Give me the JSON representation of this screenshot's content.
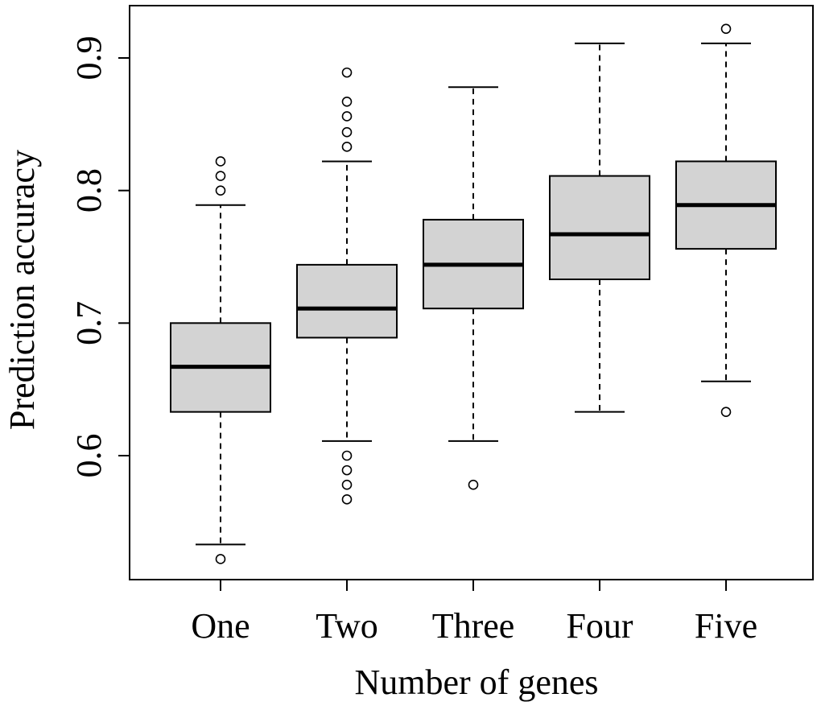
{
  "chart_data": {
    "type": "boxplot",
    "title": "",
    "xlabel": "Number of genes",
    "ylabel": "Prediction accuracy",
    "ylim": [
      0.502,
      0.94
    ],
    "yticks": [
      0.6,
      0.7,
      0.8,
      0.9
    ],
    "ytick_labels": [
      "0.6",
      "0.7",
      "0.8",
      "0.9"
    ],
    "grid": false,
    "colors": {
      "box_fill": "#d3d3d3",
      "stroke": "#000000",
      "background": "#ffffff"
    },
    "categories": [
      "One",
      "Two",
      "Three",
      "Four",
      "Five"
    ],
    "boxes": [
      {
        "label": "One",
        "whisker_low": 0.533,
        "q1": 0.633,
        "median": 0.667,
        "q3": 0.7,
        "whisker_high": 0.789,
        "outliers": [
          0.522,
          0.8,
          0.811,
          0.822
        ]
      },
      {
        "label": "Two",
        "whisker_low": 0.611,
        "q1": 0.689,
        "median": 0.711,
        "q3": 0.744,
        "whisker_high": 0.822,
        "outliers": [
          0.567,
          0.578,
          0.589,
          0.6,
          0.833,
          0.844,
          0.856,
          0.867,
          0.889
        ]
      },
      {
        "label": "Three",
        "whisker_low": 0.611,
        "q1": 0.711,
        "median": 0.744,
        "q3": 0.778,
        "whisker_high": 0.878,
        "outliers": [
          0.578
        ]
      },
      {
        "label": "Four",
        "whisker_low": 0.633,
        "q1": 0.733,
        "median": 0.767,
        "q3": 0.811,
        "whisker_high": 0.911,
        "outliers": []
      },
      {
        "label": "Five",
        "whisker_low": 0.656,
        "q1": 0.756,
        "median": 0.789,
        "q3": 0.822,
        "whisker_high": 0.911,
        "outliers": [
          0.633,
          0.922
        ]
      }
    ]
  }
}
